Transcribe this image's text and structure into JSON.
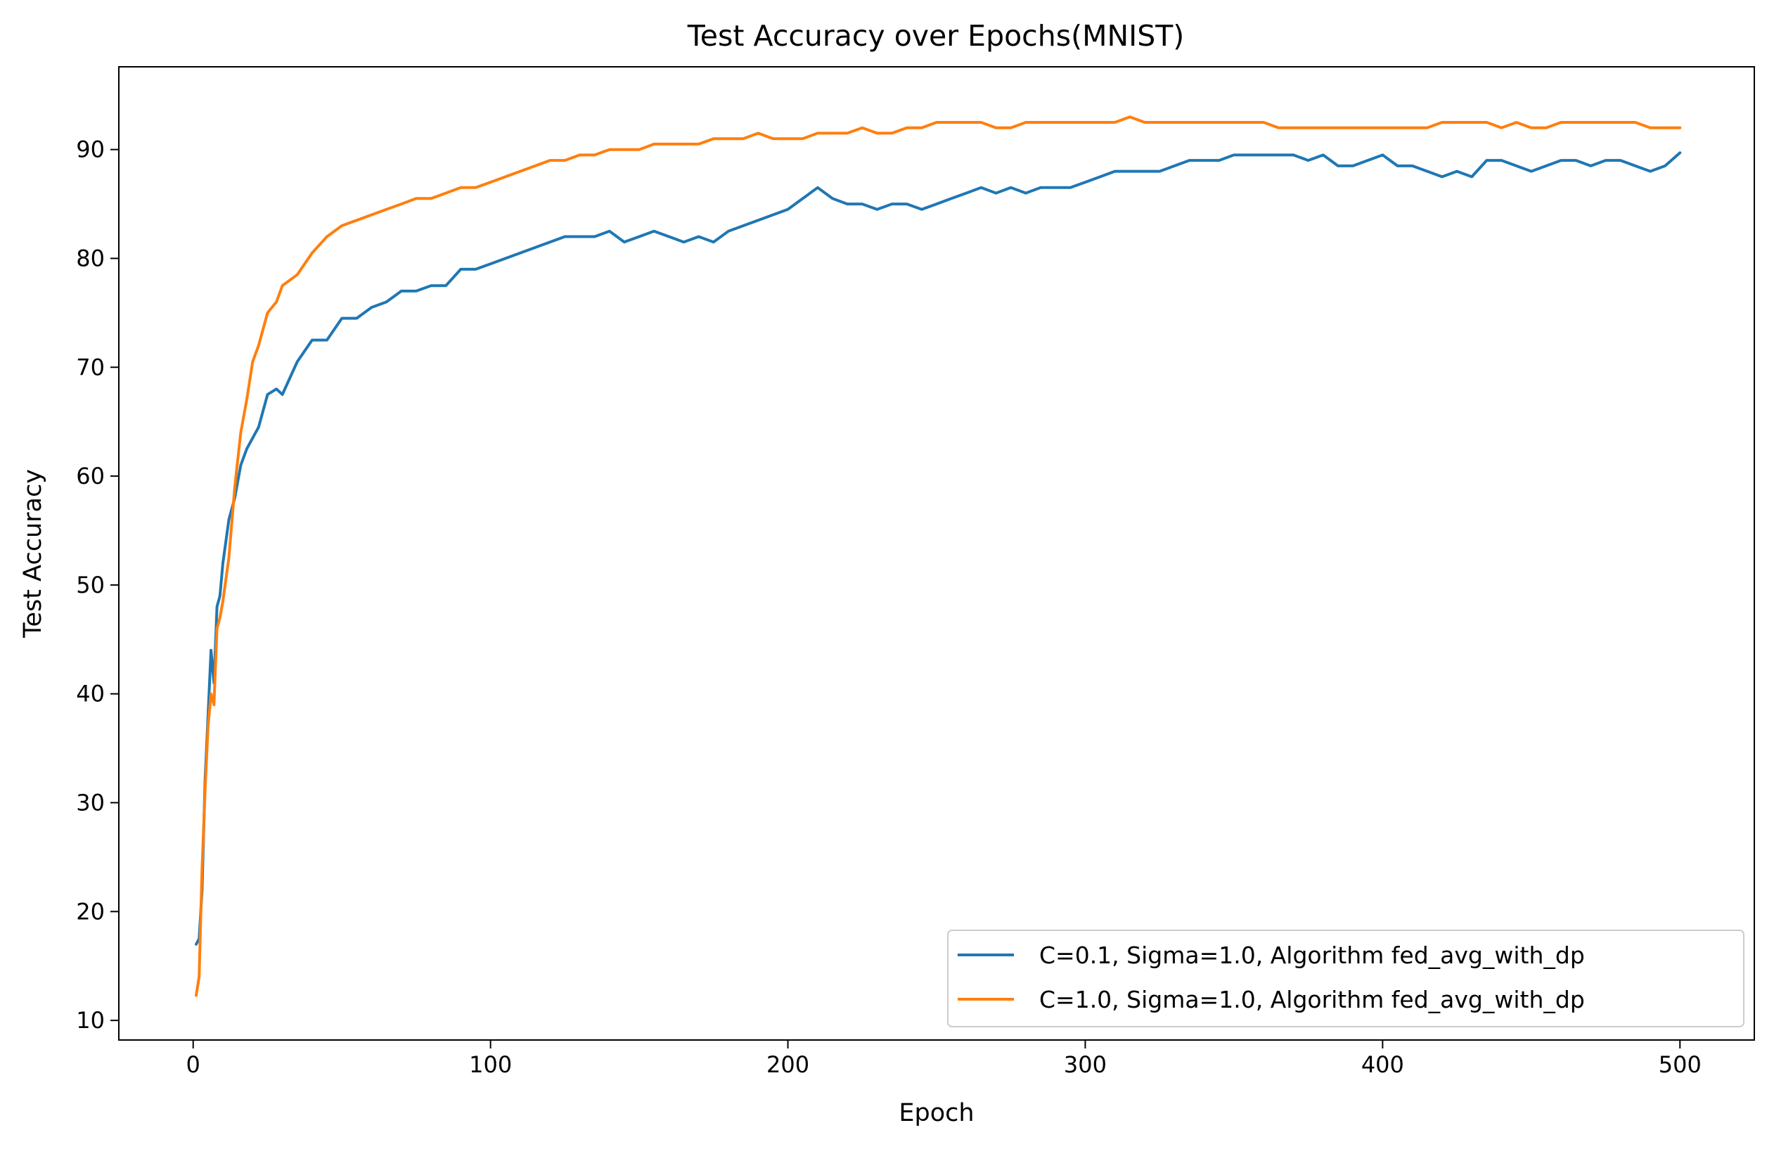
{
  "chart_data": {
    "type": "line",
    "title": "Test Accuracy over Epochs(MNIST)",
    "xlabel": "Epoch",
    "ylabel": "Test Accuracy",
    "xlim": [
      -25,
      525
    ],
    "ylim": [
      8.2,
      97.6
    ],
    "xticks": [
      0,
      100,
      200,
      300,
      400,
      500
    ],
    "yticks": [
      10,
      20,
      30,
      40,
      50,
      60,
      70,
      80,
      90
    ],
    "grid": false,
    "legend_position": "lower-right",
    "series": [
      {
        "name": "C=0.1, Sigma=1.0, Algorithm fed_avg_with_dp",
        "color": "#1f77b4",
        "x": [
          1,
          2,
          3,
          4,
          5,
          6,
          7,
          8,
          9,
          10,
          12,
          14,
          16,
          18,
          20,
          22,
          25,
          28,
          30,
          35,
          40,
          45,
          50,
          55,
          60,
          65,
          70,
          75,
          80,
          85,
          90,
          95,
          100,
          105,
          110,
          115,
          120,
          125,
          130,
          135,
          140,
          145,
          150,
          155,
          160,
          165,
          170,
          175,
          180,
          185,
          190,
          195,
          200,
          205,
          210,
          215,
          220,
          225,
          230,
          235,
          240,
          245,
          250,
          255,
          260,
          265,
          270,
          275,
          280,
          285,
          290,
          295,
          300,
          305,
          310,
          315,
          320,
          325,
          330,
          335,
          340,
          345,
          350,
          355,
          360,
          365,
          370,
          375,
          380,
          385,
          390,
          395,
          400,
          405,
          410,
          415,
          420,
          425,
          430,
          435,
          440,
          445,
          450,
          455,
          460,
          465,
          470,
          475,
          480,
          485,
          490,
          495,
          500
        ],
        "y": [
          17.0,
          17.5,
          22,
          32,
          38,
          44,
          41,
          48,
          49,
          52,
          56,
          58,
          61,
          62.5,
          63.5,
          64.5,
          67.5,
          68,
          67.5,
          70.5,
          72.5,
          72.5,
          74.5,
          74.5,
          75.5,
          76,
          77,
          77,
          77.5,
          77.5,
          79,
          79,
          79.5,
          80,
          80.5,
          81,
          81.5,
          82,
          82,
          82,
          82.5,
          81.5,
          82,
          82.5,
          82,
          81.5,
          82,
          81.5,
          82.5,
          83,
          83.5,
          84,
          84.5,
          85.5,
          86.5,
          85.5,
          85,
          85,
          84.5,
          85,
          85,
          84.5,
          85,
          85.5,
          86,
          86.5,
          86,
          86.5,
          86,
          86.5,
          86.5,
          86.5,
          87,
          87.5,
          88,
          88,
          88,
          88,
          88.5,
          89,
          89,
          89,
          89.5,
          89.5,
          89.5,
          89.5,
          89.5,
          89,
          89.5,
          88.5,
          88.5,
          89,
          89.5,
          88.5,
          88.5,
          88,
          87.5,
          88,
          87.5,
          89,
          89,
          88.5,
          88,
          88.5,
          89,
          89,
          88.5,
          89,
          89,
          88.5,
          88,
          88.5,
          89.7
        ]
      },
      {
        "name": "C=1.0, Sigma=1.0, Algorithm fed_avg_with_dp",
        "color": "#ff7f0e",
        "x": [
          1,
          2,
          3,
          4,
          5,
          6,
          7,
          8,
          9,
          10,
          12,
          14,
          16,
          18,
          20,
          22,
          25,
          28,
          30,
          35,
          40,
          45,
          50,
          55,
          60,
          65,
          70,
          75,
          80,
          85,
          90,
          95,
          100,
          105,
          110,
          115,
          120,
          125,
          130,
          135,
          140,
          145,
          150,
          155,
          160,
          165,
          170,
          175,
          180,
          185,
          190,
          195,
          200,
          205,
          210,
          215,
          220,
          225,
          230,
          235,
          240,
          245,
          250,
          255,
          260,
          265,
          270,
          275,
          280,
          285,
          290,
          295,
          300,
          305,
          310,
          315,
          320,
          325,
          330,
          335,
          340,
          345,
          350,
          355,
          360,
          365,
          370,
          375,
          380,
          385,
          390,
          395,
          400,
          405,
          410,
          415,
          420,
          425,
          430,
          435,
          440,
          445,
          450,
          455,
          460,
          465,
          470,
          475,
          480,
          485,
          490,
          495,
          500
        ],
        "y": [
          12.3,
          14,
          24,
          31,
          37,
          40,
          39,
          46,
          47,
          48.5,
          52.5,
          59,
          64,
          67,
          70.5,
          72,
          75,
          76,
          77.5,
          78.5,
          80.5,
          82,
          83,
          83.5,
          84,
          84.5,
          85,
          85.5,
          85.5,
          86,
          86.5,
          86.5,
          87,
          87.5,
          88,
          88.5,
          89,
          89,
          89.5,
          89.5,
          90,
          90,
          90,
          90.5,
          90.5,
          90.5,
          90.5,
          91,
          91,
          91,
          91.5,
          91,
          91,
          91,
          91.5,
          91.5,
          91.5,
          92,
          91.5,
          91.5,
          92,
          92,
          92.5,
          92.5,
          92.5,
          92.5,
          92,
          92,
          92.5,
          92.5,
          92.5,
          92.5,
          92.5,
          92.5,
          92.5,
          93,
          92.5,
          92.5,
          92.5,
          92.5,
          92.5,
          92.5,
          92.5,
          92.5,
          92.5,
          92,
          92,
          92,
          92,
          92,
          92,
          92,
          92,
          92,
          92,
          92,
          92.5,
          92.5,
          92.5,
          92.5,
          92,
          92.5,
          92,
          92,
          92.5,
          92.5,
          92.5,
          92.5,
          92.5,
          92.5,
          92,
          92,
          92
        ]
      }
    ]
  }
}
